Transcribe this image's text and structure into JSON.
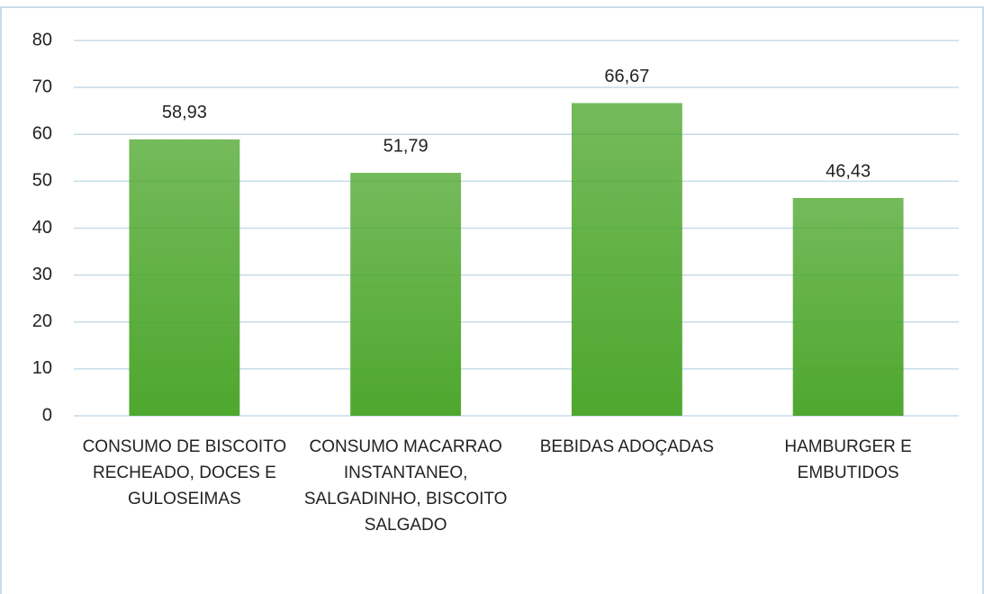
{
  "chart_data": {
    "type": "bar",
    "categories": [
      "CONSUMO DE BISCOITO RECHEADO, DOCES E GULOSEIMAS",
      "CONSUMO MACARRAO INSTANTANEO, SALGADINHO, BISCOITO SALGADO",
      "BEBIDAS ADOÇADAS",
      "HAMBURGER E EMBUTIDOS"
    ],
    "values": [
      58.93,
      51.79,
      66.67,
      46.43
    ],
    "value_labels": [
      "58,93",
      "51,79",
      "66,67",
      "46,43"
    ],
    "color": "#4ea72e",
    "ylim": [
      0,
      80
    ],
    "yticks": [
      0,
      10,
      20,
      30,
      40,
      50,
      60,
      70,
      80
    ],
    "grid": true
  }
}
